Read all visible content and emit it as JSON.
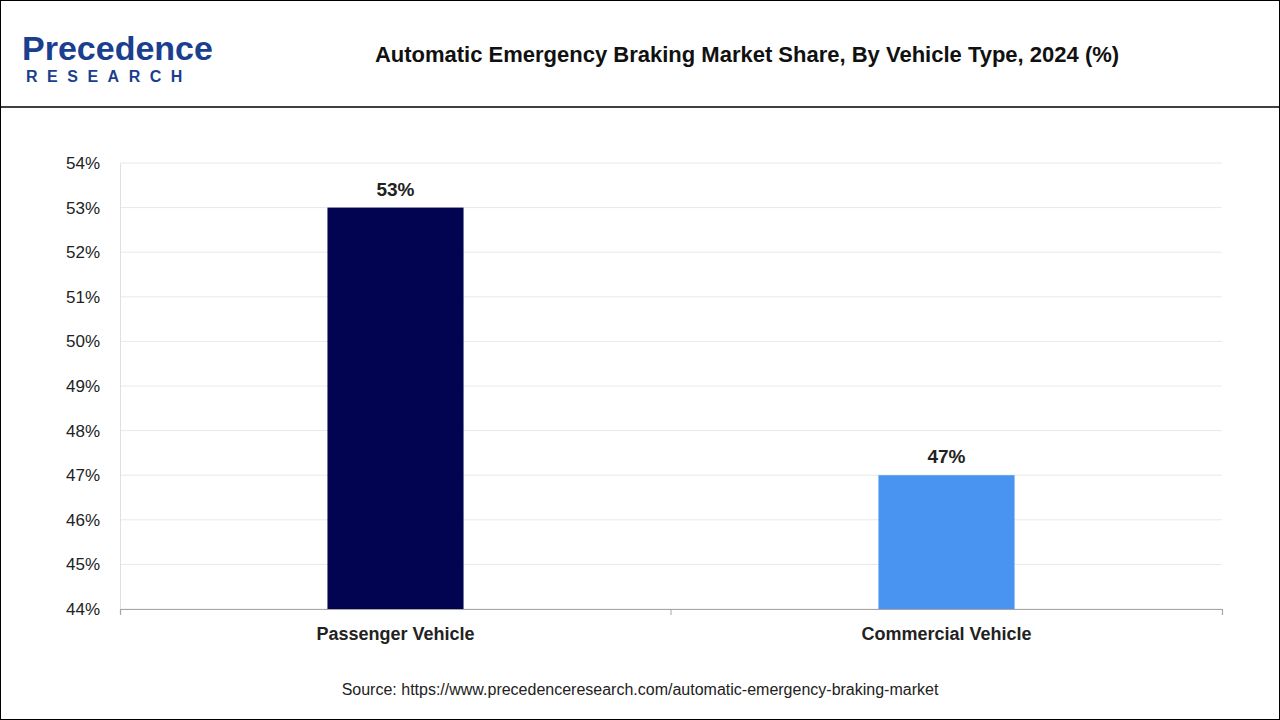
{
  "logo": {
    "name": "Precedence",
    "tagline": "RESEARCH"
  },
  "chart_data": {
    "type": "bar",
    "title": "Automatic Emergency Braking Market Share, By Vehicle Type, 2024 (%)",
    "categories": [
      "Passenger Vehicle",
      "Commercial Vehicle"
    ],
    "values": [
      53,
      47
    ],
    "value_labels": [
      "53%",
      "47%"
    ],
    "colors": [
      "#020452",
      "#4894f0"
    ],
    "ylim": [
      44,
      54
    ],
    "yticks": [
      {
        "value": 44,
        "label": "44%"
      },
      {
        "value": 45,
        "label": "45%"
      },
      {
        "value": 46,
        "label": "46%"
      },
      {
        "value": 47,
        "label": "47%"
      },
      {
        "value": 48,
        "label": "48%"
      },
      {
        "value": 49,
        "label": "49%"
      },
      {
        "value": 50,
        "label": "50%"
      },
      {
        "value": 51,
        "label": "51%"
      },
      {
        "value": 52,
        "label": "52%"
      },
      {
        "value": 53,
        "label": "53%"
      },
      {
        "value": 54,
        "label": "54%"
      }
    ],
    "grid": true,
    "data_labels": true,
    "source": "Source: https://www.precedenceresearch.com/automatic-emergency-braking-market"
  }
}
